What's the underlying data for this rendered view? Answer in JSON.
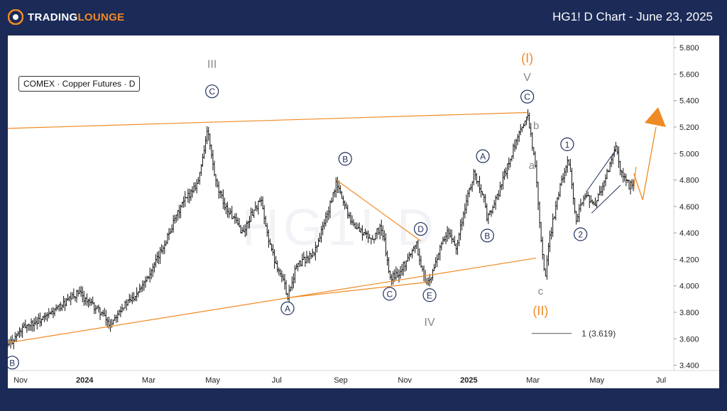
{
  "header": {
    "logo_text_main": "TRADING",
    "logo_text_alt": "LOUNGE",
    "title": "HG1! D Chart - June 23, 2025"
  },
  "watermark": "HG1! D",
  "symbol_label": "COMEX · Copper Futures · D",
  "colors": {
    "background": "#1b2a57",
    "candle": "#111111",
    "trendline": "#f08a24",
    "wave_label": "#1f2f5c",
    "roman_gray": "#888888"
  },
  "chart_data": {
    "type": "candlestick",
    "x_ticks": [
      "Nov",
      "2024",
      "Mar",
      "May",
      "Jul",
      "Sep",
      "Nov",
      "2025",
      "Mar",
      "May",
      "Jul"
    ],
    "x_ticks_bold": [
      "2024",
      "2025"
    ],
    "y_ticks": [
      "5.800",
      "5.600",
      "5.400",
      "5.200",
      "5.000",
      "4.800",
      "4.600",
      "4.400",
      "4.200",
      "4.000",
      "3.800",
      "3.600",
      "3.400"
    ],
    "ylim": [
      3.36,
      5.86
    ],
    "price_path": [
      [
        0,
        3.55
      ],
      [
        4,
        3.7
      ],
      [
        8,
        3.75
      ],
      [
        12,
        3.85
      ],
      [
        16,
        3.95
      ],
      [
        18,
        3.88
      ],
      [
        21,
        3.8
      ],
      [
        23,
        3.7
      ],
      [
        25,
        3.82
      ],
      [
        28,
        3.9
      ],
      [
        31,
        4.05
      ],
      [
        33,
        4.15
      ],
      [
        35,
        4.3
      ],
      [
        37,
        4.45
      ],
      [
        39,
        4.6
      ],
      [
        41,
        4.7
      ],
      [
        43,
        4.8
      ],
      [
        44,
        5.0
      ],
      [
        45,
        5.18
      ],
      [
        46,
        4.95
      ],
      [
        47,
        4.75
      ],
      [
        49,
        4.6
      ],
      [
        51,
        4.5
      ],
      [
        53,
        4.4
      ],
      [
        55,
        4.55
      ],
      [
        57,
        4.65
      ],
      [
        58,
        4.45
      ],
      [
        60,
        4.2
      ],
      [
        62,
        4.05
      ],
      [
        63,
        3.92
      ],
      [
        65,
        4.15
      ],
      [
        67,
        4.2
      ],
      [
        69,
        4.25
      ],
      [
        71,
        4.45
      ],
      [
        73,
        4.65
      ],
      [
        74,
        4.78
      ],
      [
        76,
        4.6
      ],
      [
        78,
        4.45
      ],
      [
        80,
        4.4
      ],
      [
        82,
        4.35
      ],
      [
        84,
        4.45
      ],
      [
        85,
        4.3
      ],
      [
        86,
        4.05
      ],
      [
        88,
        4.1
      ],
      [
        90,
        4.2
      ],
      [
        92,
        4.33
      ],
      [
        93,
        4.15
      ],
      [
        94,
        4.05
      ],
      [
        95,
        4.02
      ],
      [
        97,
        4.25
      ],
      [
        99,
        4.4
      ],
      [
        101,
        4.3
      ],
      [
        103,
        4.6
      ],
      [
        105,
        4.85
      ],
      [
        107,
        4.7
      ],
      [
        108,
        4.5
      ],
      [
        110,
        4.65
      ],
      [
        112,
        4.85
      ],
      [
        114,
        5.05
      ],
      [
        116,
        5.2
      ],
      [
        117,
        5.32
      ],
      [
        118,
        5.1
      ],
      [
        119,
        4.85
      ],
      [
        120,
        4.4
      ],
      [
        121,
        4.05
      ],
      [
        122,
        4.35
      ],
      [
        124,
        4.7
      ],
      [
        126,
        4.95
      ],
      [
        127,
        4.8
      ],
      [
        128,
        4.5
      ],
      [
        130,
        4.7
      ],
      [
        132,
        4.6
      ],
      [
        134,
        4.75
      ],
      [
        136,
        4.95
      ],
      [
        137,
        5.05
      ],
      [
        138,
        4.85
      ],
      [
        140,
        4.75
      ],
      [
        141,
        4.8
      ]
    ],
    "trendlines": [
      {
        "x1": 0,
        "y1": 5.19,
        "x2": 117,
        "y2": 5.31
      },
      {
        "x1": 0,
        "y1": 3.57,
        "x2": 119,
        "y2": 4.21
      },
      {
        "x1": 63,
        "y1": 3.91,
        "x2": 95,
        "y2": 4.03
      },
      {
        "x1": 74,
        "y1": 4.8,
        "x2": 93,
        "y2": 4.34
      },
      {
        "x1": 141,
        "y1": 4.73,
        "x2": 141.5,
        "y2": 4.9
      }
    ],
    "projection": [
      [
        141,
        4.85
      ],
      [
        143,
        4.65
      ],
      [
        146,
        5.2
      ]
    ],
    "fib_line": {
      "x1": 118,
      "x2": 127,
      "y": 3.64,
      "label": "1 (3.619)"
    },
    "wave_labels": [
      {
        "text": "III",
        "style": "roman",
        "x": 46,
        "y": 5.68
      },
      {
        "text": "C",
        "style": "circle",
        "x": 46,
        "y": 5.47
      },
      {
        "text": "B",
        "style": "circle",
        "x": 76,
        "y": 4.96
      },
      {
        "text": "A",
        "style": "circle",
        "x": 63,
        "y": 3.83
      },
      {
        "text": "D",
        "style": "circle",
        "x": 93,
        "y": 4.43
      },
      {
        "text": "C",
        "style": "circle",
        "x": 86,
        "y": 3.94
      },
      {
        "text": "E",
        "style": "circle",
        "x": 95,
        "y": 3.93
      },
      {
        "text": "IV",
        "style": "roman",
        "x": 95,
        "y": 3.73
      },
      {
        "text": "A",
        "style": "circle",
        "x": 107,
        "y": 4.98
      },
      {
        "text": "B",
        "style": "circle",
        "x": 108,
        "y": 4.38
      },
      {
        "text": "(I)",
        "style": "orange",
        "x": 117,
        "y": 5.72
      },
      {
        "text": "V",
        "style": "roman",
        "x": 117,
        "y": 5.58
      },
      {
        "text": "C",
        "style": "circle",
        "x": 117,
        "y": 5.43
      },
      {
        "text": "b",
        "style": "gray",
        "x": 119,
        "y": 5.21
      },
      {
        "text": "a",
        "style": "gray",
        "x": 118,
        "y": 4.91
      },
      {
        "text": "c",
        "style": "gray",
        "x": 120,
        "y": 3.96
      },
      {
        "text": "(II)",
        "style": "orange",
        "x": 120,
        "y": 3.81
      },
      {
        "text": "1",
        "style": "circle",
        "x": 126,
        "y": 5.07
      },
      {
        "text": "2",
        "style": "circle",
        "x": 129,
        "y": 4.39
      },
      {
        "text": "B",
        "style": "circle",
        "x": 1,
        "y": 3.42
      }
    ]
  }
}
